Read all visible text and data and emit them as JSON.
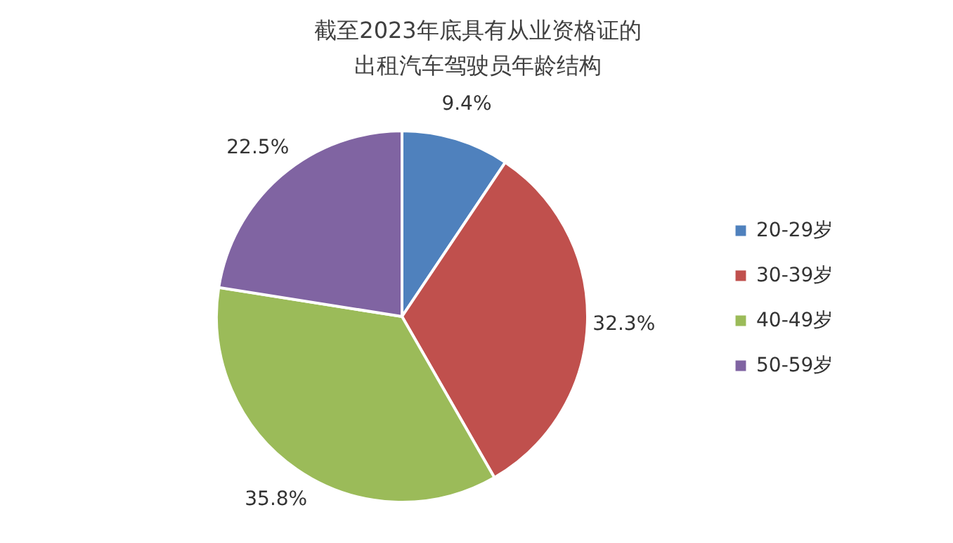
{
  "chart_data": {
    "type": "pie",
    "title": "截至2023年底具有从业资格证的出租汽车驾驶员年龄结构",
    "categories": [
      "20-29岁",
      "30-39岁",
      "40-49岁",
      "50-59岁"
    ],
    "values": [
      9.4,
      32.3,
      35.8,
      22.5
    ],
    "value_labels": [
      "9.4%",
      "32.3%",
      "35.8%",
      "22.5%"
    ],
    "colors": [
      "#4f81bd",
      "#c0504d",
      "#9bbb59",
      "#8064a2"
    ],
    "legend": "right"
  }
}
